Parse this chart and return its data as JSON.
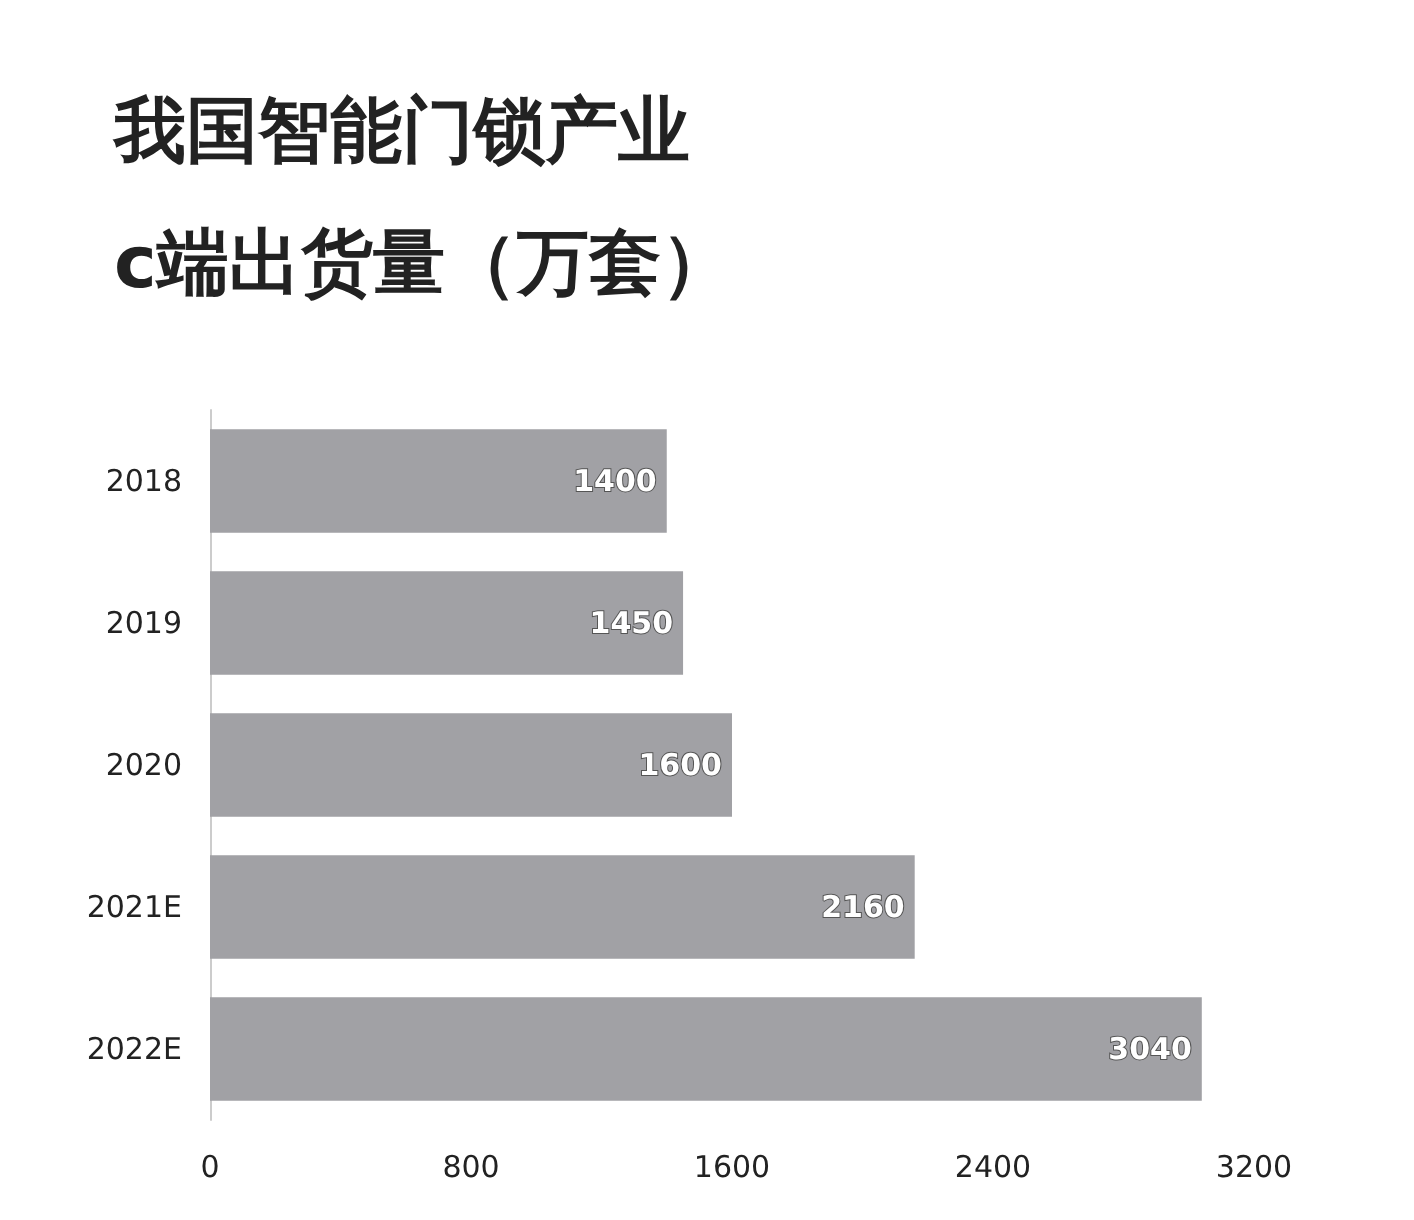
{
  "chart_data": {
    "type": "bar",
    "orientation": "horizontal",
    "title": "我国智能门锁产业\nc端出货量（万套）",
    "categories": [
      "2018",
      "2019",
      "2020",
      "2021E",
      "2022E"
    ],
    "values": [
      1400,
      1450,
      1600,
      2160,
      3040
    ],
    "color": "#a1a1a5",
    "xlim": [
      0,
      3200
    ],
    "xticks": [
      0,
      800,
      1600,
      2400,
      3200
    ],
    "grid": false,
    "data_labels": true
  }
}
